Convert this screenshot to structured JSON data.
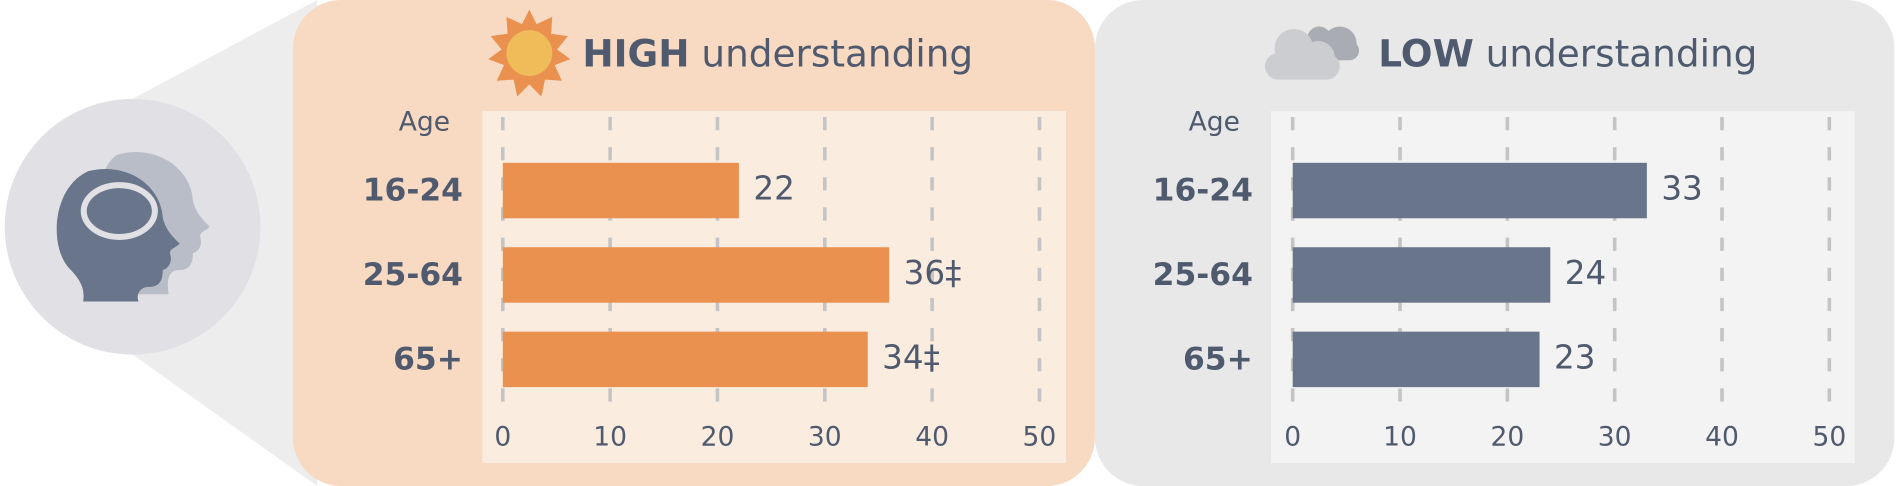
{
  "chart_data": [
    {
      "type": "bar",
      "orientation": "horizontal",
      "title": {
        "bold": "HIGH",
        "text": "understanding"
      },
      "y_axis_label": "Age",
      "categories": [
        "16-24",
        "25-64",
        "65+"
      ],
      "values": [
        22,
        36,
        34
      ],
      "value_labels": [
        "22",
        "36‡",
        "34‡"
      ],
      "color": "#ea914f",
      "xlim": [
        0,
        50
      ],
      "xticks": [
        0,
        10,
        20,
        30,
        40,
        50
      ],
      "grid": true
    },
    {
      "type": "bar",
      "orientation": "horizontal",
      "title": {
        "bold": "LOW",
        "text": "understanding"
      },
      "y_axis_label": "Age",
      "categories": [
        "16-24",
        "25-64",
        "65+"
      ],
      "values": [
        33,
        24,
        23
      ],
      "value_labels": [
        "33",
        "24",
        "23"
      ],
      "color": "#69758a",
      "xlim": [
        0,
        50
      ],
      "xticks": [
        0,
        10,
        20,
        30,
        40,
        50
      ],
      "grid": true
    }
  ]
}
